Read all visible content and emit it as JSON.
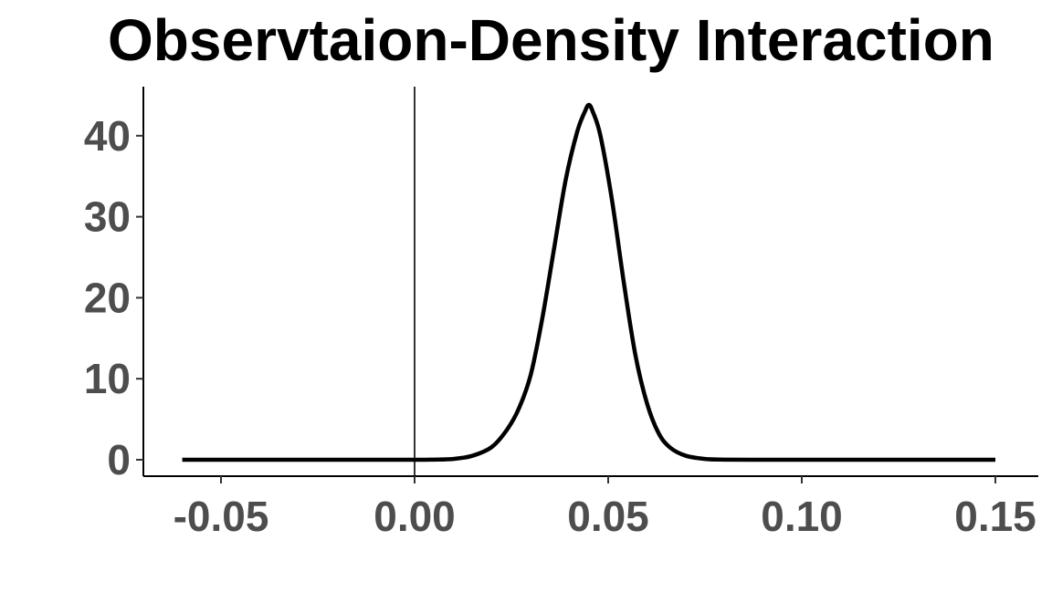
{
  "chart_data": {
    "type": "line",
    "title": "Observtaion-Density Interaction",
    "xlabel": "",
    "ylabel": "",
    "xlim": [
      -0.06,
      0.15
    ],
    "ylim": [
      0,
      44
    ],
    "grid": false,
    "legend": "none",
    "x_ticks": [
      {
        "value": -0.05,
        "label": "-0.05"
      },
      {
        "value": 0.0,
        "label": "0.00"
      },
      {
        "value": 0.05,
        "label": "0.05"
      },
      {
        "value": 0.1,
        "label": "0.10"
      },
      {
        "value": 0.15,
        "label": "0.15"
      }
    ],
    "y_ticks": [
      {
        "value": 0,
        "label": "0"
      },
      {
        "value": 10,
        "label": "10"
      },
      {
        "value": 20,
        "label": "20"
      },
      {
        "value": 30,
        "label": "30"
      },
      {
        "value": 40,
        "label": "40"
      }
    ],
    "reference_line": {
      "x": 0
    },
    "line_color": "#000000",
    "series": [
      {
        "x": [
          -0.06,
          -0.04,
          -0.02,
          0.0,
          0.005,
          0.01,
          0.015,
          0.02,
          0.024,
          0.027,
          0.03,
          0.033,
          0.036,
          0.039,
          0.042,
          0.044,
          0.045,
          0.046,
          0.048,
          0.051,
          0.054,
          0.057,
          0.06,
          0.063,
          0.066,
          0.07,
          0.075,
          0.08,
          0.09,
          0.1,
          0.12,
          0.15
        ],
        "y": [
          0,
          0,
          0,
          0,
          0.02,
          0.1,
          0.5,
          1.6,
          3.8,
          6.4,
          10.5,
          17.5,
          26,
          34.5,
          40.5,
          43,
          43.8,
          43,
          40,
          32,
          22,
          13,
          7,
          3.3,
          1.5,
          0.5,
          0.1,
          0.02,
          0,
          0,
          0,
          0
        ]
      }
    ]
  }
}
